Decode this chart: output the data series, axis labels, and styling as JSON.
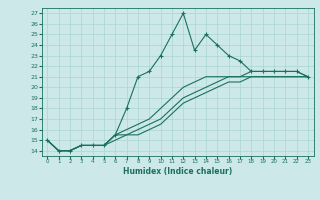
{
  "x": [
    0,
    1,
    2,
    3,
    4,
    5,
    6,
    7,
    8,
    9,
    10,
    11,
    12,
    13,
    14,
    15,
    16,
    17,
    18,
    19,
    20,
    21,
    22,
    23
  ],
  "line1": [
    15,
    14,
    14,
    14.5,
    14.5,
    14.5,
    15.5,
    18,
    21,
    21.5,
    23,
    25,
    27,
    23.5,
    25,
    24,
    23,
    22.5,
    21.5,
    21.5,
    21.5,
    21.5,
    21.5,
    21
  ],
  "line2": [
    15,
    14,
    14,
    14.5,
    14.5,
    14.5,
    15.5,
    16,
    16.5,
    17,
    18,
    19,
    20,
    20.5,
    21,
    21,
    21,
    21,
    21.5,
    21.5,
    21.5,
    21.5,
    21.5,
    21
  ],
  "line3": [
    15,
    14,
    14,
    14.5,
    14.5,
    14.5,
    15.5,
    15.5,
    16,
    16.5,
    17,
    18,
    19,
    19.5,
    20,
    20.5,
    21,
    21,
    21,
    21,
    21,
    21,
    21,
    21
  ],
  "line4": [
    15,
    14,
    14,
    14.5,
    14.5,
    14.5,
    15,
    15.5,
    15.5,
    16,
    16.5,
    17.5,
    18.5,
    19,
    19.5,
    20,
    20.5,
    20.5,
    21,
    21,
    21,
    21,
    21,
    21
  ],
  "color": "#1a7060",
  "bg_color": "#cce8e8",
  "grid_color": "#aad4d4",
  "xlabel": "Humidex (Indice chaleur)",
  "ylim": [
    13.5,
    27.5
  ],
  "xlim": [
    -0.5,
    23.5
  ],
  "yticks": [
    14,
    15,
    16,
    17,
    18,
    19,
    20,
    21,
    22,
    23,
    24,
    25,
    26,
    27
  ],
  "xticks": [
    0,
    1,
    2,
    3,
    4,
    5,
    6,
    7,
    8,
    9,
    10,
    11,
    12,
    13,
    14,
    15,
    16,
    17,
    18,
    19,
    20,
    21,
    22,
    23
  ]
}
